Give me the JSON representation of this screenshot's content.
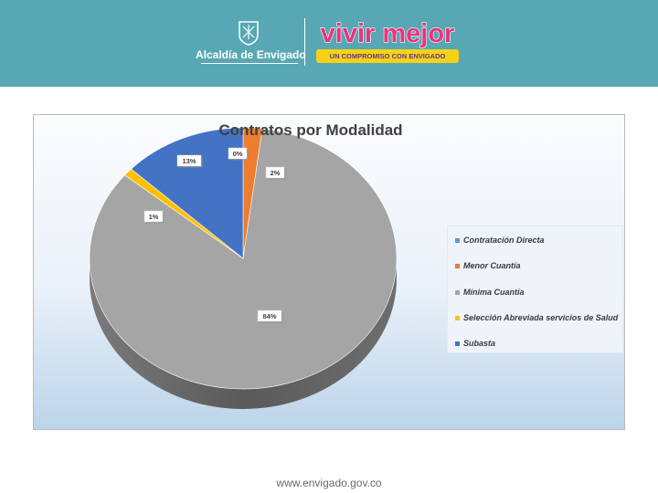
{
  "header": {
    "org_name": "Alcaldía de Envigado",
    "brand_name": "vivir mejor",
    "tagline_prefix": "UN COMPROMISO CON ",
    "tagline_emphasis": "ENVIGADO",
    "background_color": "#57a7b4"
  },
  "chart_data": {
    "type": "pie",
    "title": "Contratos por Modalidad",
    "legend_position": "right",
    "series": [
      {
        "name": "Contratación Directa",
        "value": 0,
        "label": "0%",
        "color": "#5b9bd5"
      },
      {
        "name": "Menor Cuantía",
        "value": 2,
        "label": "2%",
        "color": "#ed7d31"
      },
      {
        "name": "Mínima Cuantía",
        "value": 84,
        "label": "84%",
        "color": "#a5a5a5"
      },
      {
        "name": "Selección Abreviada servicios de Salud",
        "value": 1,
        "label": "1%",
        "color": "#ffc000"
      },
      {
        "name": "Subasta",
        "value": 13,
        "label": "13%",
        "color": "#4472c4"
      }
    ]
  },
  "footer": {
    "url": "www.envigado.gov.co"
  }
}
